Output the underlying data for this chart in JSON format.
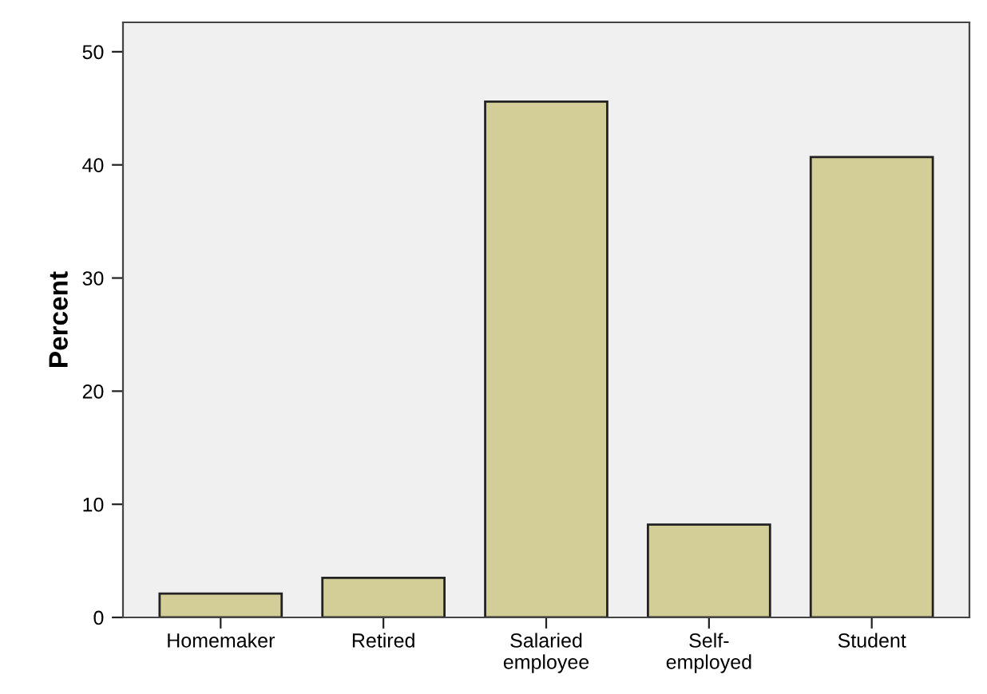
{
  "chart_data": {
    "type": "bar",
    "ylabel": "Percent",
    "categories": [
      "Homemaker",
      "Retired",
      "Salaried\nemployee",
      "Self-\nemployed",
      "Student"
    ],
    "values": [
      2.1,
      3.5,
      45.6,
      8.2,
      40.7
    ],
    "color": "#d3cd97",
    "ylim": [
      0,
      52.6
    ],
    "yticks": [
      0,
      10,
      20,
      30,
      40,
      50
    ],
    "grid": false,
    "legend": false
  }
}
